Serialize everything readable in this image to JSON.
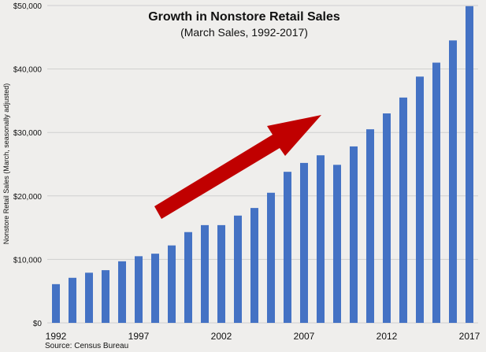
{
  "chart_data": {
    "type": "bar",
    "title": "Growth in Nonstore Retail Sales",
    "subtitle": "(March Sales, 1992-2017)",
    "ylabel": "Nonstore Retail Sales (March, seasonally adjusted)",
    "xlabel": "",
    "source": "Source: Census Bureau",
    "ylim": [
      0,
      50000
    ],
    "yticks": [
      "$0",
      "$10,000",
      "$20,000",
      "$30,000",
      "$40,000",
      "$50,000"
    ],
    "xtick_labels": [
      "1992",
      "1997",
      "2002",
      "2007",
      "2012",
      "2017"
    ],
    "grid": true,
    "categories": [
      "1992",
      "1993",
      "1994",
      "1995",
      "1996",
      "1997",
      "1998",
      "1999",
      "2000",
      "2001",
      "2002",
      "2003",
      "2004",
      "2005",
      "2006",
      "2007",
      "2008",
      "2009",
      "2010",
      "2011",
      "2012",
      "2013",
      "2014",
      "2015",
      "2016",
      "2017"
    ],
    "values": [
      6100,
      7100,
      7900,
      8300,
      9700,
      10500,
      10900,
      12200,
      14300,
      15400,
      15400,
      16900,
      18100,
      20500,
      23800,
      25200,
      26400,
      24900,
      27800,
      30500,
      33000,
      35500,
      38800,
      41000,
      44500,
      49900
    ],
    "bar_color": "#4472c4",
    "arrow_color": "#c00000"
  }
}
